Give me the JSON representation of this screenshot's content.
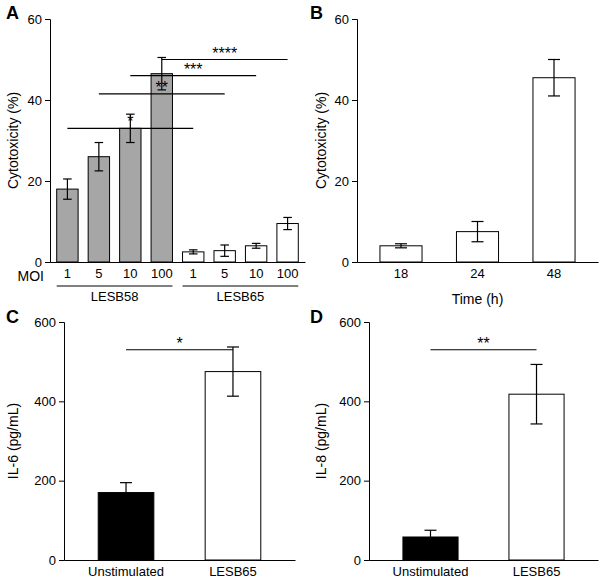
{
  "chart_data": [
    {
      "type": "bar",
      "title": "A",
      "y_label": "Cytotoxicity (%)",
      "x_label": "MOI",
      "categories": [
        "1",
        "5",
        "10",
        "100",
        "1",
        "5",
        "10",
        "100"
      ],
      "values": [
        18,
        26,
        33,
        46.5,
        2.5,
        2.8,
        4,
        9.5
      ],
      "errors": [
        2.5,
        3.5,
        3.5,
        4,
        0.5,
        1.4,
        0.6,
        1.5
      ],
      "colors": [
        "#a6a6a6",
        "#a6a6a6",
        "#a6a6a6",
        "#a6a6a6",
        "#ffffff",
        "#ffffff",
        "#ffffff",
        "#ffffff"
      ],
      "groups": [
        {
          "name": "LESB58",
          "size": 4
        },
        {
          "name": "LESB65",
          "size": 4
        }
      ],
      "annotations": [
        {
          "text": "*",
          "from": 0,
          "to": 4,
          "y": 33
        },
        {
          "text": "**",
          "from": 1,
          "to": 5,
          "y": 41.5
        },
        {
          "text": "***",
          "from": 2,
          "to": 6,
          "y": 46
        },
        {
          "text": "****",
          "from": 3,
          "to": 7,
          "y": 50
        }
      ],
      "ylim": [
        0,
        60
      ],
      "yticks": [
        0,
        20,
        40,
        60
      ]
    },
    {
      "type": "bar",
      "title": "B",
      "y_label": "Cytotoxicity (%)",
      "x_label": "Time (h)",
      "categories": [
        "18",
        "24",
        "48"
      ],
      "values": [
        4,
        7.5,
        45.5
      ],
      "errors": [
        0.5,
        2.5,
        4.5
      ],
      "colors": [
        "#ffffff",
        "#ffffff",
        "#ffffff"
      ],
      "ylim": [
        0,
        60
      ],
      "yticks": [
        0,
        20,
        40,
        60
      ]
    },
    {
      "type": "bar",
      "title": "C",
      "y_label": "IL-6 (pg/mL)",
      "categories": [
        "Unstimulated",
        "LESB65"
      ],
      "values": [
        170,
        475
      ],
      "errors": [
        25,
        62
      ],
      "colors": [
        "#000000",
        "#ffffff"
      ],
      "annotations": [
        {
          "text": "*",
          "from": 0,
          "to": 1,
          "y": 530
        }
      ],
      "ylim": [
        0,
        600
      ],
      "yticks": [
        0,
        200,
        400,
        600
      ]
    },
    {
      "type": "bar",
      "title": "D",
      "y_label": "IL-8 (pg/mL)",
      "categories": [
        "Unstimulated",
        "LESB65"
      ],
      "values": [
        58,
        418
      ],
      "errors": [
        17,
        75
      ],
      "colors": [
        "#000000",
        "#ffffff"
      ],
      "annotations": [
        {
          "text": "**",
          "from": 0,
          "to": 1,
          "y": 530
        }
      ],
      "ylim": [
        0,
        600
      ],
      "yticks": [
        0,
        200,
        400,
        600
      ]
    }
  ]
}
